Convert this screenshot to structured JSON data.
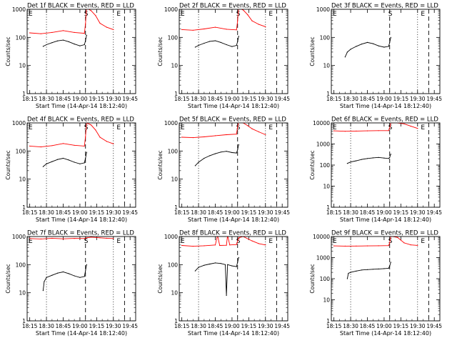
{
  "figure": {
    "xlabel": "Start Time (14-Apr-14 18:12:40)",
    "ylabel": "Counts/sec",
    "x_ticks": [
      "18:15",
      "18:30",
      "18:45",
      "19:00",
      "19:15",
      "19:30",
      "19:45"
    ],
    "y_ticks": [
      "1",
      "10",
      "100",
      "1000"
    ],
    "y_ticks_wide": [
      "1",
      "10",
      "100",
      "1000",
      "10000"
    ],
    "marker_labels": [
      "E",
      "S",
      "E"
    ],
    "colors": {
      "events": "#000000",
      "lld": "#ff0000",
      "axes": "#000000"
    }
  },
  "chart_data": [
    {
      "type": "line",
      "title": "Det 1f BLACK = Events, RED = LLD",
      "ylim": [
        1,
        1000
      ],
      "log_y": true,
      "x_range": [
        "18:12:40",
        "19:50"
      ],
      "x_unit": "minutes after 18:00",
      "markers": {
        "dotted": [
          "18:30",
          "19:30"
        ],
        "dashed": [
          "19:05",
          "19:40"
        ]
      },
      "series": [
        {
          "name": "Events",
          "color": "#000000",
          "x": [
            27,
            30,
            35,
            40,
            45,
            50,
            55,
            60,
            64,
            65,
            66
          ],
          "y": [
            48,
            55,
            65,
            75,
            80,
            70,
            58,
            50,
            55,
            75,
            120
          ]
        },
        {
          "name": "LLD",
          "color": "#ff0000",
          "x": [
            15,
            25,
            35,
            45,
            55,
            64,
            65,
            66,
            70,
            74,
            78,
            84,
            90
          ],
          "y": [
            145,
            135,
            150,
            175,
            150,
            140,
            300,
            1100,
            900,
            600,
            320,
            230,
            190
          ]
        }
      ]
    },
    {
      "type": "line",
      "title": "Det 2f BLACK = Events, RED = LLD",
      "ylim": [
        1,
        1000
      ],
      "log_y": true,
      "x_range": [
        "18:12:40",
        "19:50"
      ],
      "x_unit": "minutes after 18:00",
      "markers": {
        "dotted": [
          "18:30",
          "19:30"
        ],
        "dashed": [
          "19:05",
          "19:40"
        ]
      },
      "series": [
        {
          "name": "Events",
          "color": "#000000",
          "x": [
            27,
            30,
            35,
            40,
            45,
            50,
            55,
            60,
            64,
            65,
            66
          ],
          "y": [
            45,
            52,
            62,
            72,
            76,
            66,
            55,
            47,
            52,
            70,
            110
          ]
        },
        {
          "name": "LLD",
          "color": "#ff0000",
          "x": [
            15,
            25,
            35,
            45,
            55,
            64,
            65,
            66,
            70,
            74,
            78,
            84,
            90
          ],
          "y": [
            190,
            180,
            200,
            230,
            195,
            185,
            380,
            1100,
            950,
            640,
            390,
            290,
            240
          ]
        }
      ]
    },
    {
      "type": "line",
      "title": "Det 3f BLACK = Events, RED = LLD",
      "ylim": [
        1,
        1000
      ],
      "log_y": true,
      "x_range": [
        "18:12:40",
        "19:50"
      ],
      "x_unit": "minutes after 18:00",
      "markers": {
        "dotted": [
          "19:30"
        ],
        "dashed": [
          "19:05",
          "19:40"
        ]
      },
      "series": [
        {
          "name": "Events",
          "color": "#000000",
          "x": [
            25,
            27,
            30,
            35,
            40,
            45,
            50,
            55,
            60,
            64,
            65,
            66
          ],
          "y": [
            20,
            30,
            38,
            48,
            58,
            66,
            60,
            50,
            45,
            48,
            65,
            100
          ]
        }
      ]
    },
    {
      "type": "line",
      "title": "Det 4f BLACK = Events, RED = LLD",
      "ylim": [
        1,
        1000
      ],
      "log_y": true,
      "x_range": [
        "18:12:40",
        "19:50"
      ],
      "x_unit": "minutes after 18:00",
      "markers": {
        "dotted": [
          "18:30",
          "19:30"
        ],
        "dashed": [
          "19:05",
          "19:40"
        ]
      },
      "series": [
        {
          "name": "Events",
          "color": "#000000",
          "x": [
            27,
            30,
            35,
            40,
            45,
            50,
            55,
            60,
            64,
            65,
            66
          ],
          "y": [
            28,
            35,
            42,
            50,
            55,
            48,
            40,
            35,
            38,
            55,
            90
          ]
        },
        {
          "name": "LLD",
          "color": "#ff0000",
          "x": [
            15,
            25,
            35,
            45,
            55,
            64,
            65,
            66,
            70,
            74,
            78,
            84,
            90
          ],
          "y": [
            150,
            140,
            155,
            185,
            160,
            150,
            320,
            1000,
            850,
            560,
            310,
            220,
            180
          ]
        }
      ]
    },
    {
      "type": "line",
      "title": "Det 5f BLACK = Events, RED = LLD",
      "ylim": [
        1,
        1000
      ],
      "log_y": true,
      "x_range": [
        "18:12:40",
        "19:50"
      ],
      "x_unit": "minutes after 18:00",
      "markers": {
        "dotted": [
          "18:30",
          "19:30"
        ],
        "dashed": [
          "19:05",
          "19:40"
        ]
      },
      "series": [
        {
          "name": "Events",
          "color": "#000000",
          "x": [
            27,
            30,
            35,
            40,
            45,
            50,
            55,
            60,
            64,
            65,
            66
          ],
          "y": [
            30,
            40,
            55,
            68,
            80,
            92,
            98,
            88,
            85,
            110,
            170
          ]
        },
        {
          "name": "LLD",
          "color": "#ff0000",
          "x": [
            15,
            25,
            35,
            45,
            55,
            64,
            65,
            66,
            70,
            74,
            78,
            84,
            90
          ],
          "y": [
            310,
            300,
            320,
            350,
            380,
            400,
            700,
            1100,
            1000,
            800,
            620,
            480,
            380
          ]
        }
      ]
    },
    {
      "type": "line",
      "title": "Det 6f BLACK = Events, RED = LLD",
      "ylim": [
        1,
        10000
      ],
      "log_y": true,
      "x_range": [
        "18:12:40",
        "19:50"
      ],
      "x_unit": "minutes after 18:00",
      "markers": {
        "dotted": [
          "18:30",
          "19:30"
        ],
        "dashed": [
          "19:05",
          "19:40"
        ]
      },
      "series": [
        {
          "name": "Events",
          "color": "#000000",
          "x": [
            27,
            30,
            35,
            40,
            45,
            50,
            55,
            60,
            64,
            65,
            66
          ],
          "y": [
            120,
            140,
            160,
            185,
            205,
            220,
            230,
            215,
            205,
            230,
            330
          ]
        },
        {
          "name": "LLD",
          "color": "#ff0000",
          "x": [
            15,
            25,
            35,
            45,
            55,
            64,
            65,
            66,
            68,
            72,
            78,
            84,
            90
          ],
          "y": [
            4200,
            4000,
            4100,
            4200,
            4300,
            4300,
            5500,
            10000,
            10000,
            10000,
            9000,
            7000,
            5500
          ]
        }
      ]
    },
    {
      "type": "line",
      "title": "Det 7f BLACK = Events, RED = LLD",
      "ylim": [
        1,
        1000
      ],
      "log_y": true,
      "x_range": [
        "18:12:40",
        "19:50"
      ],
      "x_unit": "minutes after 18:00",
      "markers": {
        "dotted": [
          "18:30",
          "19:30"
        ],
        "dashed": [
          "19:05",
          "19:40"
        ]
      },
      "series": [
        {
          "name": "Events",
          "color": "#000000",
          "x": [
            27,
            28,
            30,
            35,
            40,
            45,
            50,
            55,
            60,
            64,
            65,
            66
          ],
          "y": [
            12,
            25,
            35,
            42,
            50,
            55,
            48,
            40,
            35,
            38,
            60,
            100
          ]
        },
        {
          "name": "LLD",
          "color": "#ff0000",
          "x": [
            15,
            25,
            35,
            45,
            55,
            64,
            66,
            70,
            78,
            84,
            90
          ],
          "y": [
            850,
            820,
            870,
            830,
            860,
            850,
            900,
            950,
            900,
            870,
            850
          ]
        }
      ]
    },
    {
      "type": "line",
      "title": "Det 8f BLACK = Events, RED = LLD",
      "ylim": [
        1,
        1000
      ],
      "log_y": true,
      "x_range": [
        "18:12:40",
        "19:50"
      ],
      "x_unit": "minutes after 18:00",
      "markers": {
        "dotted": [
          "18:30",
          "19:30"
        ],
        "dashed": [
          "19:05",
          "19:40"
        ]
      },
      "series": [
        {
          "name": "Events",
          "color": "#000000",
          "x": [
            27,
            30,
            35,
            40,
            45,
            50,
            54,
            55,
            56,
            60,
            64,
            65,
            66
          ],
          "y": [
            60,
            80,
            95,
            105,
            115,
            110,
            100,
            8,
            100,
            90,
            85,
            120,
            180
          ]
        },
        {
          "name": "LLD",
          "color": "#ff0000",
          "x": [
            15,
            25,
            35,
            45,
            47,
            49,
            55,
            56,
            58,
            64,
            66,
            70,
            78,
            84,
            90
          ],
          "y": [
            480,
            450,
            470,
            500,
            1100,
            480,
            490,
            1100,
            500,
            520,
            900,
            1000,
            700,
            560,
            500
          ]
        }
      ]
    },
    {
      "type": "line",
      "title": "Det 9f BLACK = Events, RED = LLD",
      "ylim": [
        1,
        10000
      ],
      "log_y": true,
      "x_range": [
        "18:12:40",
        "19:50"
      ],
      "x_unit": "minutes after 18:00",
      "markers": {
        "dotted": [
          "18:30",
          "19:30"
        ],
        "dashed": [
          "19:05",
          "19:40"
        ]
      },
      "series": [
        {
          "name": "Events",
          "color": "#000000",
          "x": [
            27,
            28,
            30,
            35,
            40,
            45,
            50,
            55,
            60,
            64,
            65,
            66
          ],
          "y": [
            100,
            180,
            200,
            230,
            260,
            270,
            280,
            290,
            300,
            310,
            400,
            600
          ]
        },
        {
          "name": "LLD",
          "color": "#ff0000",
          "x": [
            15,
            25,
            35,
            45,
            55,
            64,
            65,
            66,
            68,
            72,
            78,
            84,
            90
          ],
          "y": [
            3600,
            3500,
            3550,
            3600,
            3650,
            3700,
            5000,
            10000,
            10000,
            9000,
            5000,
            4000,
            3800
          ]
        }
      ]
    }
  ]
}
